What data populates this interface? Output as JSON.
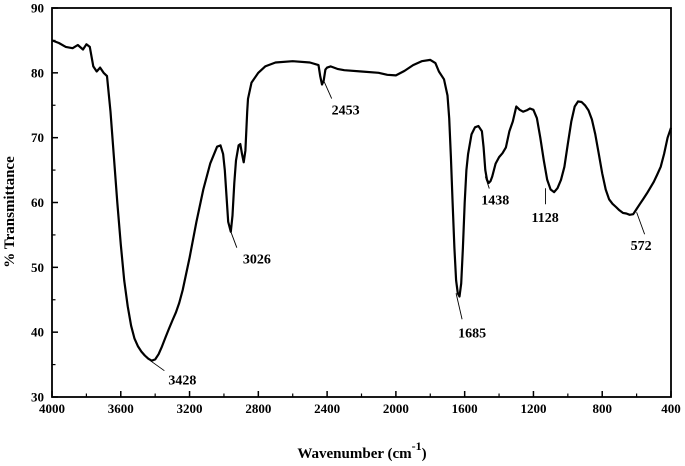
{
  "chart_data": {
    "type": "line",
    "xlabel": "Wavenumber (cm",
    "xlabel_sup": "-1",
    "xlabel_close": ")",
    "ylabel": "% Transmittance",
    "xlim": [
      4000,
      400
    ],
    "ylim": [
      30,
      90
    ],
    "x_ticks": [
      4000,
      3600,
      3200,
      2800,
      2400,
      2000,
      1600,
      1200,
      800,
      400
    ],
    "y_ticks": [
      30,
      40,
      50,
      60,
      70,
      80,
      90
    ],
    "series": [
      {
        "x": [
          4000,
          3960,
          3920,
          3880,
          3850,
          3820,
          3800,
          3780,
          3760,
          3740,
          3720,
          3700,
          3680,
          3660,
          3640,
          3620,
          3600,
          3580,
          3560,
          3540,
          3520,
          3500,
          3480,
          3460,
          3440,
          3420,
          3400,
          3380,
          3360,
          3340,
          3320,
          3300,
          3280,
          3260,
          3240,
          3200,
          3160,
          3120,
          3080,
          3040,
          3020,
          3005,
          2995,
          2985,
          2975,
          2960,
          2950,
          2940,
          2930,
          2915,
          2905,
          2895,
          2885,
          2875,
          2865,
          2860,
          2840,
          2800,
          2760,
          2700,
          2600,
          2500,
          2450,
          2440,
          2430,
          2420,
          2410,
          2400,
          2380,
          2340,
          2300,
          2200,
          2100,
          2050,
          2000,
          1950,
          1900,
          1850,
          1800,
          1770,
          1750,
          1720,
          1700,
          1690,
          1680,
          1670,
          1660,
          1650,
          1640,
          1630,
          1620,
          1610,
          1600,
          1590,
          1580,
          1560,
          1540,
          1520,
          1500,
          1490,
          1480,
          1470,
          1460,
          1450,
          1440,
          1430,
          1420,
          1400,
          1380,
          1360,
          1340,
          1320,
          1300,
          1280,
          1260,
          1240,
          1220,
          1200,
          1180,
          1160,
          1140,
          1120,
          1100,
          1080,
          1060,
          1040,
          1020,
          1000,
          980,
          960,
          940,
          920,
          900,
          880,
          860,
          840,
          820,
          800,
          780,
          760,
          740,
          720,
          700,
          680,
          660,
          640,
          620,
          600,
          580,
          560,
          540,
          520,
          500,
          480,
          460,
          440,
          420,
          400
        ],
        "y": [
          85.0,
          84.6,
          84.0,
          83.8,
          84.3,
          83.6,
          84.4,
          84.0,
          81.0,
          80.2,
          80.8,
          80.0,
          79.5,
          74.0,
          67.0,
          60.0,
          53.5,
          48.0,
          44.0,
          41.0,
          39.0,
          37.8,
          37.0,
          36.4,
          35.9,
          35.6,
          35.8,
          36.6,
          37.8,
          39.2,
          40.5,
          41.8,
          43.0,
          44.5,
          46.5,
          51.5,
          57.0,
          62.0,
          66.0,
          68.6,
          68.8,
          67.5,
          65.0,
          61.0,
          57.0,
          55.5,
          58.0,
          63.0,
          66.5,
          68.8,
          69.0,
          67.5,
          66.2,
          68.0,
          74.0,
          76.0,
          78.5,
          80.0,
          81.0,
          81.6,
          81.8,
          81.6,
          81.2,
          79.5,
          78.2,
          78.8,
          80.5,
          80.8,
          81.0,
          80.6,
          80.4,
          80.2,
          80.0,
          79.7,
          79.6,
          80.3,
          81.2,
          81.8,
          82.0,
          81.5,
          80.2,
          79.0,
          76.5,
          73.0,
          67.0,
          60.0,
          53.0,
          48.0,
          46.0,
          45.5,
          47.5,
          53.0,
          60.0,
          65.0,
          67.5,
          70.5,
          71.6,
          71.8,
          71.0,
          68.5,
          65.0,
          63.5,
          63.0,
          63.3,
          64.0,
          65.0,
          66.0,
          67.0,
          67.6,
          68.5,
          71.0,
          72.5,
          74.8,
          74.3,
          74.0,
          74.2,
          74.5,
          74.3,
          73.0,
          70.0,
          66.5,
          63.5,
          62.0,
          61.6,
          62.2,
          63.5,
          65.5,
          69.0,
          72.5,
          74.8,
          75.6,
          75.5,
          75.0,
          74.2,
          72.8,
          70.5,
          67.5,
          64.5,
          62.0,
          60.5,
          59.8,
          59.3,
          58.8,
          58.4,
          58.3,
          58.1,
          58.2,
          59.0,
          59.8,
          60.6,
          61.4,
          62.3,
          63.2,
          64.3,
          65.5,
          67.5,
          70.0,
          71.5
        ]
      }
    ],
    "annotations": [
      {
        "label": "3428",
        "x": 3428,
        "y": 35.6
      },
      {
        "label": "3026",
        "x": 2960,
        "y": 55.5
      },
      {
        "label": "2453",
        "x": 2420,
        "y": 78.8
      },
      {
        "label": "1685",
        "x": 1650,
        "y": 46.0
      },
      {
        "label": "1438",
        "x": 1480,
        "y": 64.0
      },
      {
        "label": "1128",
        "x": 1130,
        "y": 62.2
      },
      {
        "label": "572",
        "x": 600,
        "y": 58.5
      }
    ],
    "grid": false,
    "legend": "none"
  }
}
